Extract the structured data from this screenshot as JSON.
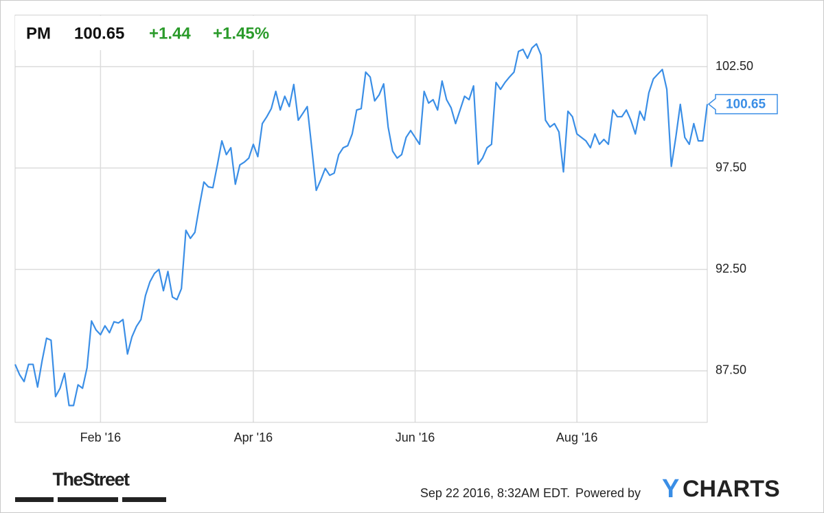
{
  "chart_data": {
    "type": "line",
    "ticker": "PM",
    "price": "100.65",
    "change": "+1.44",
    "change_pct": "+1.45%",
    "color": "#3a8ee6",
    "change_color": "#2b9b2b",
    "values": [
      87.82,
      87.31,
      86.97,
      87.82,
      87.82,
      86.7,
      87.99,
      89.11,
      89.01,
      86.23,
      86.64,
      87.38,
      85.79,
      85.79,
      86.81,
      86.64,
      87.65,
      89.96,
      89.52,
      89.28,
      89.72,
      89.38,
      89.92,
      89.86,
      90.03,
      88.33,
      89.18,
      89.69,
      90.03,
      91.21,
      91.89,
      92.3,
      92.5,
      91.45,
      92.4,
      91.14,
      91.01,
      91.55,
      94.43,
      94.03,
      94.33,
      95.62,
      96.81,
      96.57,
      96.53,
      97.65,
      98.84,
      98.16,
      98.5,
      96.7,
      97.65,
      97.79,
      97.99,
      98.67,
      98.06,
      99.69,
      100.03,
      100.43,
      101.28,
      100.36,
      101.04,
      100.53,
      101.62,
      99.86,
      100.19,
      100.53,
      98.5,
      96.4,
      96.91,
      97.48,
      97.14,
      97.25,
      98.16,
      98.5,
      98.6,
      99.18,
      100.36,
      100.43,
      102.23,
      101.99,
      100.81,
      101.11,
      101.65,
      99.52,
      98.33,
      97.99,
      98.16,
      99.01,
      99.35,
      99.01,
      98.67,
      101.28,
      100.7,
      100.87,
      100.36,
      101.79,
      100.87,
      100.47,
      99.69,
      100.36,
      101.04,
      100.87,
      101.55,
      97.69,
      97.99,
      98.5,
      98.67,
      101.72,
      101.38,
      101.72,
      101.99,
      102.23,
      103.25,
      103.35,
      102.91,
      103.42,
      103.62,
      103.08,
      99.86,
      99.52,
      99.69,
      99.28,
      97.31,
      100.3,
      100.03,
      99.18,
      99.01,
      98.84,
      98.5,
      99.18,
      98.67,
      98.91,
      98.67,
      100.36,
      100.03,
      100.03,
      100.36,
      99.86,
      99.18,
      100.3,
      99.86,
      101.21,
      101.89,
      102.13,
      102.36,
      101.38,
      97.58,
      99.01,
      100.64,
      99.01,
      98.67,
      99.69,
      98.84,
      98.84,
      100.65
    ],
    "xlim": [
      0,
      154
    ],
    "xticks": [
      {
        "value": 19,
        "label": "Feb '16"
      },
      {
        "value": 53,
        "label": "Apr '16"
      },
      {
        "value": 89,
        "label": "Jun '16"
      },
      {
        "value": 125,
        "label": "Aug '16"
      }
    ],
    "ylim": [
      84.96,
      105.04
    ],
    "yticks": [
      {
        "value": 87.5,
        "label": "87.50"
      },
      {
        "value": 92.5,
        "label": "92.50"
      },
      {
        "value": 97.5,
        "label": "97.50"
      },
      {
        "value": 102.5,
        "label": "102.50"
      }
    ],
    "grid": true,
    "source_logo": "TheStreet",
    "timestamp": "Sep 22 2016, 8:32AM EDT.",
    "powered_by": "Powered by",
    "brand": [
      "Y",
      "CHARTS"
    ]
  }
}
